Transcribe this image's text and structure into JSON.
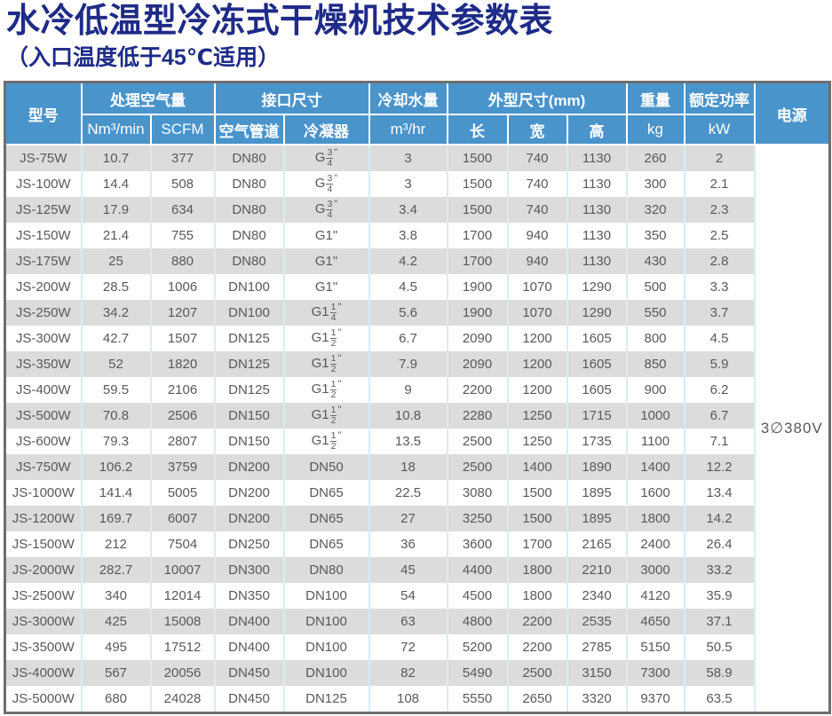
{
  "page": {
    "title": "水冷低温型冷冻式干燥机技术参数表",
    "subtitle": "（入口温度低于45℃适用）"
  },
  "colors": {
    "title_navy": "#1e2b87",
    "header_blue": "#4a94cc",
    "row_alt_gray": "#dcdcdc",
    "outer_border_gray": "#6e6e6e",
    "column_divider_blue": "#d7ecf8",
    "cell_text_gray": "#595959"
  },
  "table": {
    "header": {
      "model": "型号",
      "air_volume_group": "处理空气量",
      "air_volume_units": [
        "Nm³/min",
        "SCFM"
      ],
      "connection_group": "接口尺寸",
      "connection_subs": [
        "空气管道",
        "冷凝器"
      ],
      "cooling_water_group": "冷却水量",
      "cooling_water_unit": "m³/hr",
      "dimensions_group": "外型尺寸(mm)",
      "dimensions_subs": [
        "长",
        "宽",
        "高"
      ],
      "weight_group": "重量",
      "weight_unit": "kg",
      "rated_power_group": "额定功率",
      "rated_power_unit": "kW",
      "power_supply": "电源"
    },
    "power_supply_value": "3∅380V",
    "column_keys": [
      "model",
      "nm3_per_min",
      "scfm",
      "air_pipe",
      "condenser",
      "cooling_water_m3hr",
      "length",
      "width",
      "height",
      "weight_kg",
      "rated_power_kw"
    ],
    "rows": [
      [
        "JS-75W",
        "10.7",
        "377",
        "DN80",
        "G3/4\"",
        "3",
        "1500",
        "740",
        "1130",
        "260",
        "2"
      ],
      [
        "JS-100W",
        "14.4",
        "508",
        "DN80",
        "G3/4\"",
        "3",
        "1500",
        "740",
        "1130",
        "300",
        "2.1"
      ],
      [
        "JS-125W",
        "17.9",
        "634",
        "DN80",
        "G3/4\"",
        "3.4",
        "1500",
        "740",
        "1130",
        "320",
        "2.3"
      ],
      [
        "JS-150W",
        "21.4",
        "755",
        "DN80",
        "G1\"",
        "3.8",
        "1700",
        "940",
        "1130",
        "350",
        "2.5"
      ],
      [
        "JS-175W",
        "25",
        "880",
        "DN80",
        "G1\"",
        "4.2",
        "1700",
        "940",
        "1130",
        "430",
        "2.8"
      ],
      [
        "JS-200W",
        "28.5",
        "1006",
        "DN100",
        "G1\"",
        "4.5",
        "1900",
        "1070",
        "1290",
        "500",
        "3.3"
      ],
      [
        "JS-250W",
        "34.2",
        "1207",
        "DN100",
        "G1-1/4\"",
        "5.6",
        "1900",
        "1070",
        "1290",
        "550",
        "3.7"
      ],
      [
        "JS-300W",
        "42.7",
        "1507",
        "DN125",
        "G1-1/2\"",
        "6.7",
        "2090",
        "1200",
        "1605",
        "800",
        "4.5"
      ],
      [
        "JS-350W",
        "52",
        "1820",
        "DN125",
        "G1-1/2\"",
        "7.9",
        "2090",
        "1200",
        "1605",
        "850",
        "5.9"
      ],
      [
        "JS-400W",
        "59.5",
        "2106",
        "DN125",
        "G1-1/2\"",
        "9",
        "2200",
        "1200",
        "1605",
        "900",
        "6.2"
      ],
      [
        "JS-500W",
        "70.8",
        "2506",
        "DN150",
        "G1-1/2\"",
        "10.8",
        "2280",
        "1250",
        "1715",
        "1000",
        "6.7"
      ],
      [
        "JS-600W",
        "79.3",
        "2807",
        "DN150",
        "G1-1/2\"",
        "13.5",
        "2500",
        "1250",
        "1735",
        "1100",
        "7.1"
      ],
      [
        "JS-750W",
        "106.2",
        "3759",
        "DN200",
        "DN50",
        "18",
        "2500",
        "1400",
        "1890",
        "1400",
        "12.2"
      ],
      [
        "JS-1000W",
        "141.4",
        "5005",
        "DN200",
        "DN65",
        "22.5",
        "3080",
        "1500",
        "1895",
        "1600",
        "13.4"
      ],
      [
        "JS-1200W",
        "169.7",
        "6007",
        "DN200",
        "DN65",
        "27",
        "3250",
        "1500",
        "1895",
        "1800",
        "14.2"
      ],
      [
        "JS-1500W",
        "212",
        "7504",
        "DN250",
        "DN65",
        "36",
        "3600",
        "1700",
        "2165",
        "2400",
        "26.4"
      ],
      [
        "JS-2000W",
        "282.7",
        "10007",
        "DN300",
        "DN80",
        "45",
        "4400",
        "1800",
        "2210",
        "3000",
        "33.2"
      ],
      [
        "JS-2500W",
        "340",
        "12014",
        "DN350",
        "DN100",
        "54",
        "4500",
        "1800",
        "2340",
        "4120",
        "35.9"
      ],
      [
        "JS-3000W",
        "425",
        "15008",
        "DN400",
        "DN100",
        "63",
        "4800",
        "2200",
        "2535",
        "4650",
        "37.1"
      ],
      [
        "JS-3500W",
        "495",
        "17512",
        "DN400",
        "DN100",
        "72",
        "5200",
        "2200",
        "2785",
        "5150",
        "50.5"
      ],
      [
        "JS-4000W",
        "567",
        "20056",
        "DN450",
        "DN100",
        "82",
        "5490",
        "2500",
        "3150",
        "7300",
        "58.9"
      ],
      [
        "JS-5000W",
        "680",
        "24028",
        "DN450",
        "DN125",
        "108",
        "5550",
        "2650",
        "3320",
        "9370",
        "63.5"
      ]
    ]
  }
}
